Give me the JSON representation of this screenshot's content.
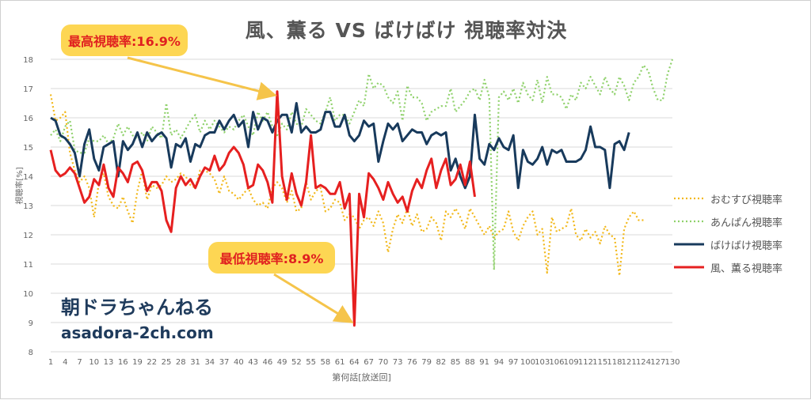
{
  "chart_data": {
    "type": "line",
    "title": "風、薫る VS ばけばけ 視聴率対決",
    "xlabel": "第何話[放送回]",
    "ylabel": "視聴率[%]",
    "ylim": [
      8,
      18
    ],
    "yticks": [
      8,
      9,
      10,
      11,
      12,
      13,
      14,
      15,
      16,
      17,
      18
    ],
    "xlim": [
      1,
      130
    ],
    "xticks": [
      1,
      4,
      7,
      10,
      13,
      16,
      19,
      22,
      25,
      28,
      31,
      34,
      37,
      40,
      43,
      46,
      49,
      52,
      55,
      58,
      61,
      64,
      67,
      70,
      73,
      76,
      79,
      82,
      85,
      88,
      91,
      94,
      97,
      100,
      103,
      106,
      109,
      112,
      115,
      118,
      121,
      124,
      127,
      130
    ],
    "grid": true,
    "legend_position": "right",
    "series": [
      {
        "name": "おむすび視聴率",
        "color": "#f2b81a",
        "dash": "dotted",
        "values": [
          16.8,
          15.9,
          16.0,
          16.2,
          14.8,
          14.2,
          13.8,
          14.0,
          13.6,
          12.6,
          13.8,
          14.1,
          13.3,
          13.0,
          12.9,
          13.3,
          12.8,
          12.4,
          13.5,
          14.2,
          13.2,
          13.7,
          13.6,
          13.7,
          14.0,
          13.8,
          13.9,
          14.1,
          14.0,
          13.7,
          13.6,
          14.2,
          14.2,
          14.1,
          13.9,
          13.4,
          14.0,
          13.5,
          13.4,
          13.2,
          13.4,
          13.6,
          13.2,
          13.0,
          13.1,
          12.9,
          13.6,
          13.8,
          13.6,
          13.1,
          13.5,
          12.8,
          12.9,
          13.8,
          13.2,
          13.5,
          13.6,
          12.8,
          12.9,
          13.2,
          13.1,
          12.5,
          12.7,
          12.6,
          12.2,
          12.5,
          12.6,
          12.3,
          12.8,
          12.4,
          11.4,
          12.2,
          12.7,
          12.4,
          12.9,
          12.3,
          12.7,
          12.1,
          12.2,
          12.6,
          12.4,
          11.8,
          12.8,
          12.6,
          12.9,
          12.6,
          12.2,
          12.9,
          12.6,
          12.3,
          12.0,
          12.3,
          11.9,
          12.1,
          12.2,
          12.8,
          12.1,
          11.8,
          12.3,
          12.6,
          12.8,
          12.0,
          12.2,
          10.7,
          12.6,
          12.1,
          12.2,
          12.3,
          12.9,
          12.0,
          11.8,
          12.2,
          11.9,
          12.1,
          11.7,
          12.3,
          12.0,
          11.9,
          10.6,
          12.2,
          12.6,
          12.8,
          12.5,
          12.5
        ]
      },
      {
        "name": "あんぱん視聴率",
        "color": "#8fd16b",
        "dash": "dotted",
        "values": [
          15.4,
          15.6,
          15.2,
          15.7,
          15.9,
          14.9,
          14.8,
          14.8,
          15.3,
          15.2,
          15.2,
          15.4,
          15.1,
          15.3,
          15.8,
          15.4,
          15.7,
          15.4,
          15.3,
          15.5,
          15.2,
          15.7,
          15.5,
          15.3,
          16.5,
          15.4,
          15.6,
          15.3,
          15.6,
          15.9,
          16.1,
          15.5,
          15.9,
          15.6,
          15.9,
          15.7,
          15.5,
          15.7,
          15.6,
          15.9,
          16.1,
          15.7,
          15.4,
          16.2,
          15.9,
          16.2,
          15.7,
          15.4,
          15.8,
          15.6,
          16.2,
          15.8,
          15.7,
          16.3,
          16.1,
          15.9,
          15.8,
          16.2,
          16.7,
          15.9,
          16.1,
          16.1,
          15.8,
          16.2,
          16.6,
          16.4,
          17.5,
          17.0,
          17.2,
          17.1,
          16.7,
          16.5,
          16.9,
          15.9,
          17.1,
          16.7,
          16.7,
          16.5,
          15.9,
          16.2,
          16.3,
          16.4,
          16.4,
          17.0,
          16.2,
          16.4,
          16.6,
          16.9,
          17.0,
          16.6,
          17.3,
          16.7,
          10.8,
          16.7,
          16.9,
          16.6,
          17.0,
          16.5,
          17.2,
          16.8,
          16.6,
          17.3,
          16.5,
          17.4,
          16.8,
          16.8,
          16.7,
          16.3,
          16.8,
          16.6,
          17.2,
          17.0,
          17.4,
          17.1,
          16.8,
          17.4,
          17.0,
          16.8,
          17.4,
          17.1,
          16.6,
          17.2,
          17.4,
          17.8,
          17.6,
          17.0,
          16.6,
          16.6,
          17.5,
          18.0
        ]
      },
      {
        "name": "ばけばけ視聴率",
        "color": "#183a5c",
        "dash": "solid",
        "values": [
          16.0,
          15.9,
          15.4,
          15.3,
          15.1,
          14.8,
          14.0,
          15.1,
          15.6,
          14.6,
          14.2,
          15.0,
          15.1,
          15.2,
          14.0,
          15.2,
          14.9,
          15.1,
          15.5,
          15.0,
          15.5,
          15.2,
          15.4,
          15.5,
          15.3,
          14.3,
          15.1,
          15.0,
          15.3,
          14.5,
          15.1,
          15.0,
          15.4,
          15.5,
          15.5,
          15.9,
          15.6,
          15.9,
          16.1,
          15.7,
          15.9,
          15.0,
          16.2,
          15.6,
          16.0,
          15.9,
          15.5,
          15.9,
          16.1,
          16.1,
          15.5,
          16.5,
          15.5,
          15.7,
          15.5,
          15.5,
          15.6,
          16.2,
          16.2,
          15.7,
          15.7,
          16.1,
          15.4,
          15.2,
          15.4,
          15.9,
          15.7,
          15.8,
          14.5,
          15.2,
          15.8,
          15.6,
          15.8,
          15.2,
          15.4,
          15.6,
          15.5,
          15.5,
          15.1,
          15.4,
          15.5,
          15.4,
          15.5,
          14.2,
          14.6,
          14.0,
          13.6,
          14.0,
          16.1,
          14.6,
          14.4,
          15.1,
          14.9,
          15.3,
          15.0,
          14.9,
          15.4,
          13.6,
          14.9,
          14.5,
          14.4,
          14.6,
          15.0,
          14.4,
          14.9,
          14.8,
          14.9,
          14.5,
          14.5,
          14.5,
          14.6,
          14.9,
          15.7,
          15.0,
          15.0,
          14.9,
          13.6,
          15.1,
          15.2,
          14.9,
          15.5
        ]
      },
      {
        "name": "風、薫る視聴率",
        "color": "#e62020",
        "dash": "solid",
        "values": [
          14.9,
          14.2,
          14.0,
          14.1,
          14.3,
          14.1,
          13.6,
          13.1,
          13.3,
          13.9,
          13.7,
          14.4,
          13.6,
          13.3,
          14.3,
          14.1,
          13.8,
          14.4,
          14.5,
          14.2,
          13.5,
          13.8,
          13.8,
          13.5,
          12.5,
          12.1,
          13.6,
          14.0,
          13.7,
          13.9,
          13.6,
          14.0,
          14.3,
          14.2,
          14.7,
          14.2,
          14.4,
          14.8,
          15.0,
          14.8,
          14.4,
          13.6,
          13.7,
          14.4,
          14.2,
          13.8,
          13.1,
          16.9,
          14.0,
          13.2,
          14.1,
          13.4,
          13.0,
          13.8,
          15.4,
          13.6,
          13.7,
          13.6,
          13.4,
          13.4,
          13.8,
          12.9,
          13.4,
          8.9,
          13.4,
          12.6,
          14.1,
          13.9,
          13.6,
          13.2,
          13.8,
          13.4,
          13.1,
          13.3,
          12.8,
          13.5,
          13.9,
          13.6,
          14.2,
          14.6,
          13.6,
          14.2,
          14.6,
          13.7,
          13.9,
          14.4,
          13.7,
          14.5,
          13.3
        ]
      }
    ],
    "annotations": {
      "max_label": "最高視聴率:16.9%",
      "min_label": "最低視聴率:8.9%",
      "max_point": {
        "x": 48,
        "y": 16.9
      },
      "min_point": {
        "x": 64,
        "y": 8.9
      }
    }
  },
  "watermark": {
    "name": "朝ドラちゃんねる",
    "url": "asadora-2ch.com"
  },
  "colors": {
    "callout_bg": "#fdd653",
    "callout_text": "#e02020",
    "grid": "#d9d9d9",
    "axis_text": "#666666"
  }
}
